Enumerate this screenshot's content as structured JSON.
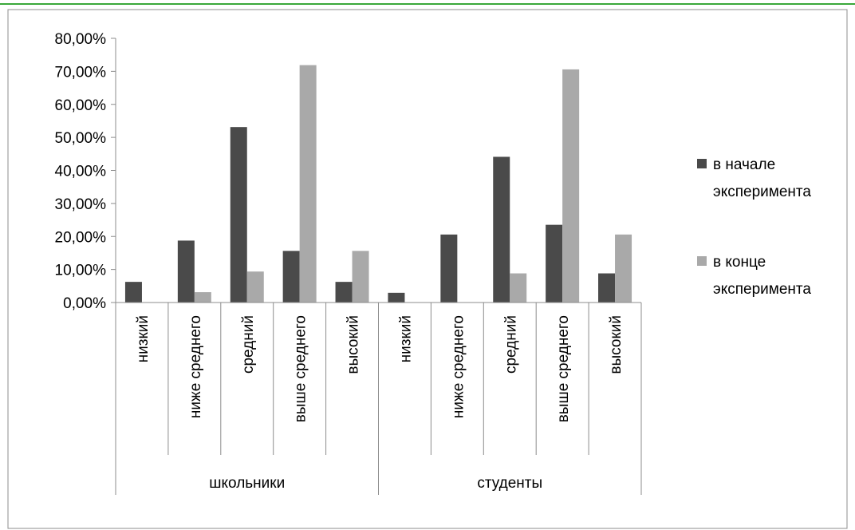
{
  "chart_data": {
    "type": "bar",
    "groups": [
      {
        "label": "школьники",
        "categories": [
          "низкий",
          "ниже среднего",
          "средний",
          "выше среднего",
          "высокий"
        ]
      },
      {
        "label": "студенты",
        "categories": [
          "низкий",
          "ниже среднего",
          "средний",
          "выше среднего",
          "высокий"
        ]
      }
    ],
    "series": [
      {
        "name": "в начале эксперимента",
        "name_lines": [
          "в начале",
          "эксперимента"
        ],
        "color": "#4a4a4a",
        "values": [
          6.25,
          18.75,
          53.13,
          15.63,
          6.25,
          2.94,
          20.59,
          44.12,
          23.53,
          8.82
        ]
      },
      {
        "name": "в конце эксперимента",
        "name_lines": [
          "в конце",
          "эксперимента"
        ],
        "color": "#a9a9a9",
        "values": [
          0,
          3.13,
          9.38,
          71.88,
          15.63,
          0,
          0,
          8.82,
          70.59,
          20.59
        ]
      }
    ],
    "y_ticks": [
      "0,00%",
      "10,00%",
      "20,00%",
      "30,00%",
      "40,00%",
      "50,00%",
      "60,00%",
      "70,00%",
      "80,00%"
    ],
    "ylim": [
      0,
      80
    ],
    "grid": false,
    "legend": "right"
  }
}
